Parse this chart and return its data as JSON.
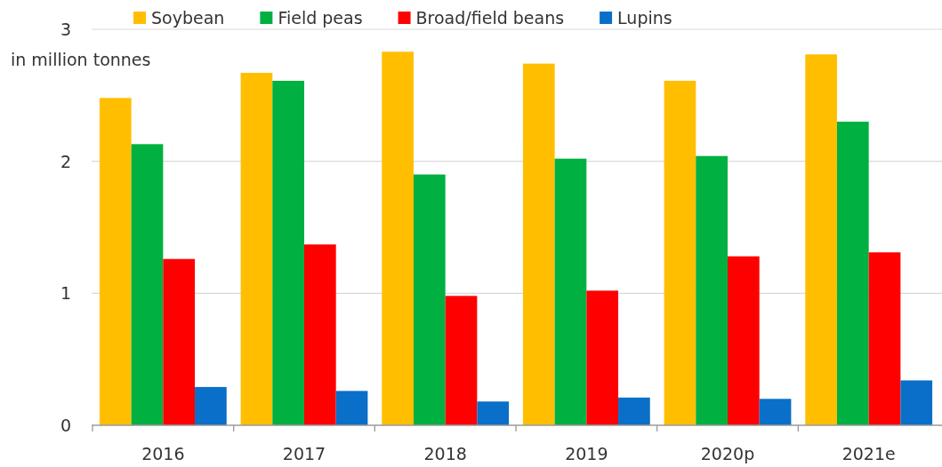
{
  "chart_data": {
    "type": "bar",
    "ylabel": "in million tonnes",
    "categories": [
      "2016",
      "2017",
      "2018",
      "2019",
      "2020p",
      "2021e"
    ],
    "series": [
      {
        "name": "Soybean",
        "color": "#ffbf00",
        "values": [
          2.48,
          2.67,
          2.83,
          2.74,
          2.61,
          2.81
        ]
      },
      {
        "name": "Field peas",
        "color": "#00b040",
        "values": [
          2.13,
          2.61,
          1.9,
          2.02,
          2.04,
          2.3
        ]
      },
      {
        "name": "Broad/field beans",
        "color": "#ff0000",
        "values": [
          1.26,
          1.37,
          0.98,
          1.02,
          1.28,
          1.31
        ]
      },
      {
        "name": "Lupins",
        "color": "#0a6fc8",
        "values": [
          0.29,
          0.26,
          0.18,
          0.21,
          0.2,
          0.34
        ]
      }
    ],
    "ylim": [
      0,
      3
    ],
    "yticks": [
      0,
      1,
      2,
      3
    ],
    "grid": "y",
    "legend": "top"
  }
}
